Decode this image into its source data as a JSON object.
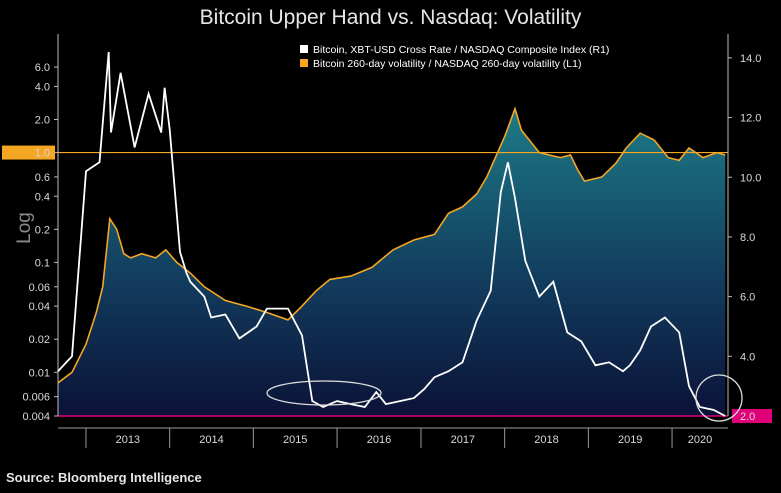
{
  "chart_data": {
    "type": "line",
    "title": "Bitcoin Upper Hand vs. Nasdaq: Volatility",
    "source": "Source: Bloomberg Intelligence",
    "left_axis": {
      "label": "Log",
      "scale": "log",
      "range": [
        0.004,
        12
      ],
      "ticks": [
        6.0,
        4.0,
        2.0,
        1.0,
        0.6,
        0.4,
        0.2,
        0.1,
        0.06,
        0.04,
        0.02,
        0.01,
        0.006,
        0.004
      ],
      "tick_labels": [
        "6.0",
        "4.0",
        "2.0",
        "1.0",
        "0.6",
        "0.4",
        "0.2",
        "0.1",
        "0.06",
        "0.04",
        "0.02",
        "0.01",
        "0.006",
        "0.004"
      ],
      "highlight": {
        "value": 1.0,
        "label": "1.0",
        "color": "#f5a623"
      }
    },
    "right_axis": {
      "scale": "linear",
      "range": [
        2,
        14.8
      ],
      "ticks": [
        14.0,
        12.0,
        10.0,
        8.0,
        6.0,
        4.0
      ],
      "tick_labels": [
        "14.0",
        "12.0",
        "10.0",
        "8.0",
        "6.0",
        "4.0"
      ],
      "highlight": {
        "value": 2.0,
        "label": "2.0",
        "color": "#e0007a"
      }
    },
    "x_axis": {
      "range": [
        "2012-09-01",
        "2020-09-01"
      ],
      "year_labels": [
        "2013",
        "2014",
        "2015",
        "2016",
        "2017",
        "2018",
        "2019",
        "2020"
      ]
    },
    "series": [
      {
        "name": "Bitcoin, XBT-USD Cross Rate / NASDAQ Composite Index (R1)",
        "axis": "right",
        "color": "#ffffff",
        "x": [
          "2012-09-01",
          "2012-11-01",
          "2013-01-01",
          "2013-03-01",
          "2013-04-10",
          "2013-04-20",
          "2013-06-01",
          "2013-08-01",
          "2013-10-01",
          "2013-11-25",
          "2013-12-10",
          "2014-01-01",
          "2014-02-15",
          "2014-03-15",
          "2014-04-01",
          "2014-06-01",
          "2014-07-01",
          "2014-09-01",
          "2014-11-01",
          "2015-01-15",
          "2015-03-01",
          "2015-06-01",
          "2015-08-01",
          "2015-09-15",
          "2015-11-01",
          "2016-01-01",
          "2016-03-01",
          "2016-05-01",
          "2016-06-20",
          "2016-08-01",
          "2016-10-01",
          "2016-12-01",
          "2017-01-15",
          "2017-03-01",
          "2017-05-01",
          "2017-07-01",
          "2017-09-01",
          "2017-11-01",
          "2017-12-15",
          "2018-01-15",
          "2018-02-15",
          "2018-04-01",
          "2018-06-01",
          "2018-08-01",
          "2018-10-01",
          "2018-12-01",
          "2019-02-01",
          "2019-04-01",
          "2019-06-01",
          "2019-07-01",
          "2019-08-15",
          "2019-10-01",
          "2019-12-01",
          "2020-02-01",
          "2020-03-15",
          "2020-05-01",
          "2020-07-01",
          "2020-08-20"
        ],
        "y": [
          3.5,
          4.0,
          10.2,
          10.5,
          14.2,
          11.5,
          13.5,
          11.0,
          12.8,
          11.5,
          13.0,
          11.6,
          7.5,
          6.8,
          6.5,
          6.0,
          5.3,
          5.4,
          4.6,
          5.0,
          5.6,
          5.6,
          4.7,
          2.5,
          2.3,
          2.5,
          2.4,
          2.3,
          2.8,
          2.4,
          2.5,
          2.6,
          2.9,
          3.3,
          3.5,
          3.8,
          5.2,
          6.2,
          9.5,
          10.5,
          9.3,
          7.2,
          6.0,
          6.5,
          4.8,
          4.5,
          3.7,
          3.8,
          3.5,
          3.7,
          4.2,
          5.0,
          5.3,
          4.8,
          3.0,
          2.3,
          2.2,
          2.0
        ]
      },
      {
        "name": "Bitcoin 260-day volatility / NASDAQ 260-day volatility (L1)",
        "axis": "left",
        "color": "#f5a623",
        "x": [
          "2012-09-01",
          "2012-11-01",
          "2013-01-01",
          "2013-02-15",
          "2013-03-15",
          "2013-04-15",
          "2013-05-15",
          "2013-06-15",
          "2013-07-15",
          "2013-09-01",
          "2013-11-01",
          "2013-12-15",
          "2014-02-01",
          "2014-04-01",
          "2014-06-01",
          "2014-09-01",
          "2014-12-01",
          "2015-03-01",
          "2015-06-01",
          "2015-08-01",
          "2015-10-01",
          "2015-12-01",
          "2016-03-01",
          "2016-06-01",
          "2016-09-01",
          "2016-12-01",
          "2017-03-01",
          "2017-05-01",
          "2017-07-01",
          "2017-09-01",
          "2017-10-15",
          "2017-12-01",
          "2018-01-01",
          "2018-02-15",
          "2018-03-15",
          "2018-06-01",
          "2018-09-01",
          "2018-10-15",
          "2018-11-15",
          "2018-12-15",
          "2019-03-01",
          "2019-05-01",
          "2019-06-15",
          "2019-08-15",
          "2019-10-15",
          "2019-12-15",
          "2020-02-01",
          "2020-03-15",
          "2020-05-15",
          "2020-07-15",
          "2020-08-20"
        ],
        "y": [
          0.008,
          0.01,
          0.018,
          0.035,
          0.06,
          0.25,
          0.2,
          0.12,
          0.11,
          0.12,
          0.11,
          0.13,
          0.1,
          0.08,
          0.06,
          0.045,
          0.04,
          0.035,
          0.03,
          0.04,
          0.055,
          0.07,
          0.075,
          0.09,
          0.13,
          0.16,
          0.18,
          0.28,
          0.32,
          0.42,
          0.6,
          1.0,
          1.4,
          2.5,
          1.6,
          1.0,
          0.9,
          0.95,
          0.7,
          0.55,
          0.6,
          0.8,
          1.1,
          1.5,
          1.3,
          0.9,
          0.85,
          1.1,
          0.9,
          1.0,
          0.95
        ]
      }
    ]
  }
}
